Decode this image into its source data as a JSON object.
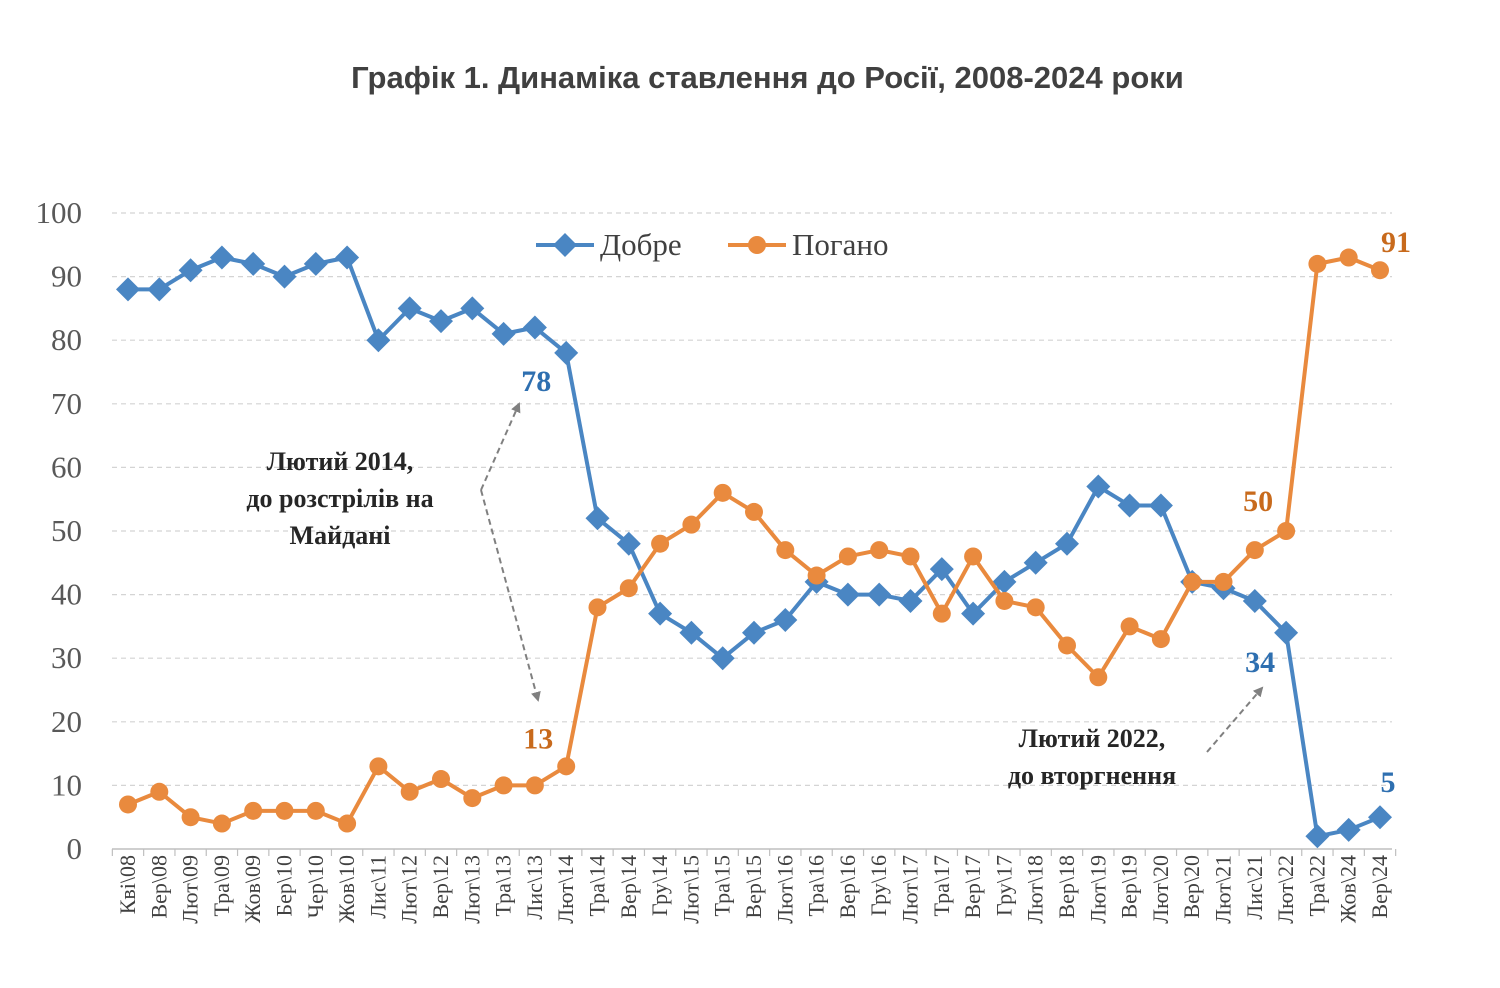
{
  "chart_data": {
    "type": "line",
    "title": "Графік 1. Динаміка ставлення до Росії, 2008-2024 роки",
    "categories": [
      "Кві\\08",
      "Вер\\08",
      "Лют\\09",
      "Тра\\09",
      "Жов\\09",
      "Бер\\10",
      "Чер\\10",
      "Жов\\10",
      "Лис\\11",
      "Лют\\12",
      "Вер\\12",
      "Лют\\13",
      "Тра\\13",
      "Лис\\13",
      "Лют\\14",
      "Тра\\14",
      "Вер\\14",
      "Гру\\14",
      "Лют\\15",
      "Тра\\15",
      "Вер\\15",
      "Лют\\16",
      "Тра\\16",
      "Вер\\16",
      "Гру\\16",
      "Лют\\17",
      "Тра\\17",
      "Вер\\17",
      "Гру\\17",
      "Лют\\18",
      "Вер\\18",
      "Лют\\19",
      "Вер\\19",
      "Лют\\20",
      "Вер\\20",
      "Лют\\21",
      "Лис\\21",
      "Лют\\22",
      "Тра\\22",
      "Жов\\24",
      "Вер\\24"
    ],
    "ylim": [
      0,
      100
    ],
    "yticks": [
      "0",
      "10",
      "20",
      "30",
      "40",
      "50",
      "60",
      "70",
      "80",
      "90",
      "100"
    ],
    "grid": true,
    "legend_position": "top-center",
    "series": [
      {
        "name": "Добре",
        "color": "#4a86c3",
        "marker": "diamond",
        "values": [
          88,
          88,
          91,
          93,
          92,
          90,
          92,
          93,
          80,
          85,
          83,
          85,
          81,
          82,
          78,
          52,
          48,
          37,
          34,
          30,
          34,
          36,
          42,
          40,
          40,
          39,
          44,
          37,
          42,
          45,
          48,
          57,
          54,
          54,
          42,
          41,
          39,
          34,
          2,
          3,
          5
        ]
      },
      {
        "name": "Погано",
        "color": "#e98a3e",
        "marker": "circle",
        "values": [
          7,
          9,
          5,
          4,
          6,
          6,
          6,
          4,
          13,
          9,
          11,
          8,
          10,
          10,
          13,
          38,
          41,
          48,
          51,
          56,
          53,
          47,
          43,
          46,
          47,
          46,
          37,
          46,
          39,
          38,
          32,
          27,
          35,
          33,
          42,
          42,
          47,
          50,
          92,
          93,
          91
        ]
      }
    ],
    "data_labels": [
      {
        "series": 0,
        "index": 14,
        "text": "78"
      },
      {
        "series": 1,
        "index": 14,
        "text": "13"
      },
      {
        "series": 0,
        "index": 37,
        "text": "34"
      },
      {
        "series": 1,
        "index": 37,
        "text": "50"
      },
      {
        "series": 0,
        "index": 40,
        "text": "5"
      },
      {
        "series": 1,
        "index": 40,
        "text": "91"
      }
    ],
    "annotations": [
      {
        "lines": [
          "Лютий 2014,",
          "до розстрілів на",
          "Майдані"
        ]
      },
      {
        "lines": [
          "Лютий 2022,",
          "до вторгнення"
        ]
      }
    ]
  }
}
